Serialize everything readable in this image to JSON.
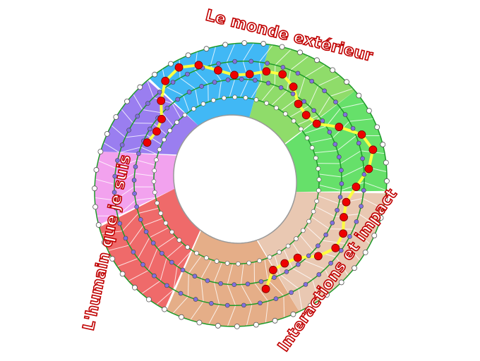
{
  "labels": {
    "top": "Le monde extérieur",
    "left": "L'humain que je suis",
    "right": "Interactions et impact"
  },
  "colors": {
    "sectors": [
      "#41b8f5",
      "#8fdc6a",
      "#66e06a",
      "#e9c8b2",
      "#e5ae88",
      "#ef6a6a",
      "#f2a2ee",
      "#9a7ef0"
    ],
    "ring_line": "#1e9a2a",
    "path": "#ffff40",
    "path_node": "#ee0000",
    "inner_node": "#8070e0",
    "outer_node": "#ffffff",
    "label_outline": "#c00000"
  }
}
